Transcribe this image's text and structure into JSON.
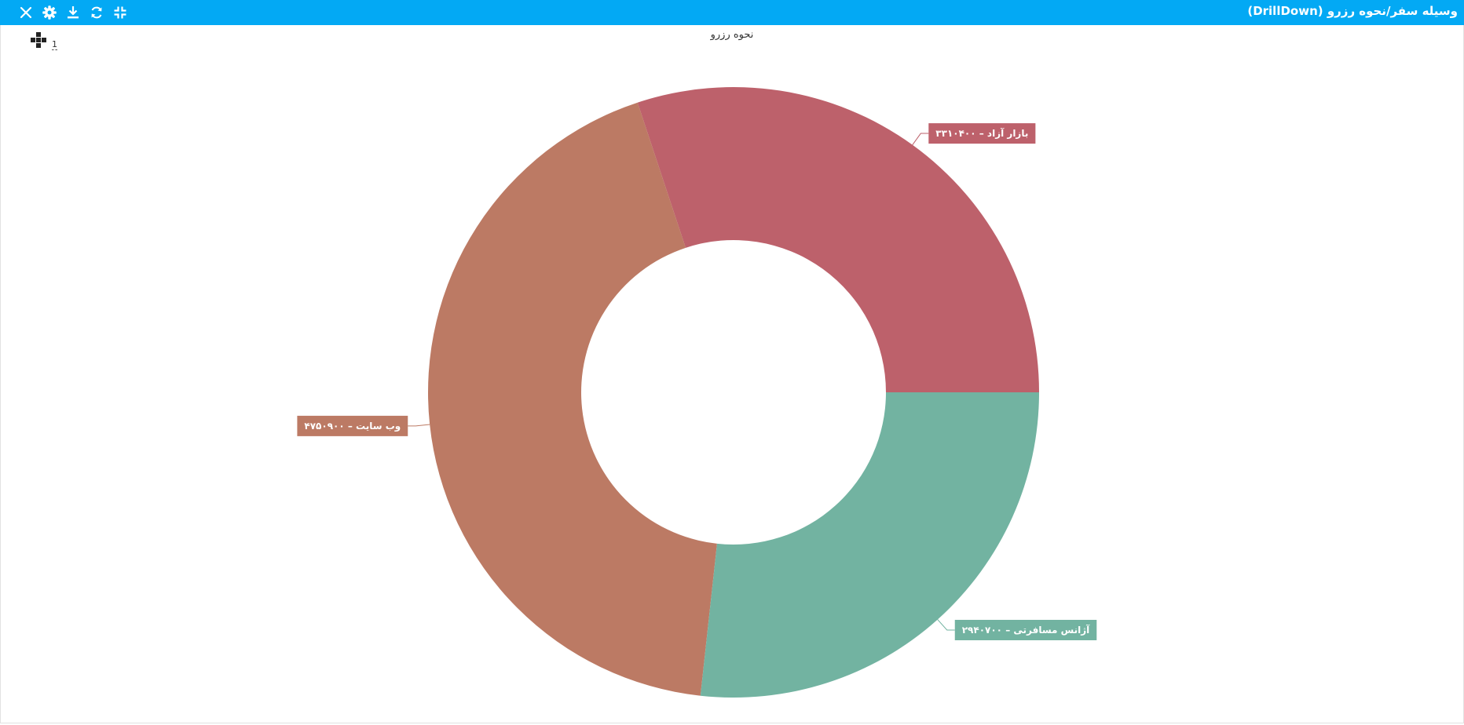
{
  "header": {
    "title": "وسیله سفر/نحوه رزرو (DrillDown)",
    "tools": [
      {
        "name": "close-icon",
        "action": "close"
      },
      {
        "name": "gear-icon",
        "action": "settings"
      },
      {
        "name": "download-icon",
        "action": "download"
      },
      {
        "name": "refresh-icon",
        "action": "refresh"
      },
      {
        "name": "collapse-icon",
        "action": "exit-fullscreen"
      }
    ]
  },
  "drill": {
    "level": "1"
  },
  "colors": {
    "header": "#03a9f4"
  },
  "chart_data": {
    "type": "pie",
    "variant": "donut",
    "title": "نحوه رزرو",
    "separator": " – ",
    "legend": "none",
    "slices": [
      {
        "label": "بازار آزاد",
        "value": 3310400,
        "value_text": "۳۳۱۰۴۰۰",
        "color": "#bd616b"
      },
      {
        "label": "وب سایت",
        "value": 4750900,
        "value_text": "۴۷۵۰۹۰۰",
        "color": "#bc7a64"
      },
      {
        "label": "آژانس مسافرتی",
        "value": 2940700,
        "value_text": "۲۹۴۰۷۰۰",
        "color": "#72b3a1"
      }
    ]
  }
}
